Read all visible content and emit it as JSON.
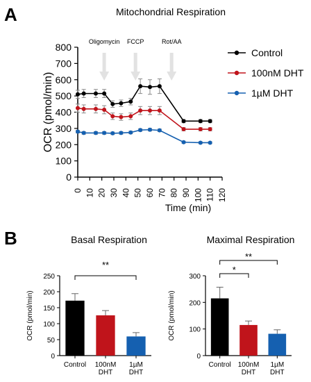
{
  "panels": {
    "a": "A",
    "b": "B"
  },
  "chart_data": [
    {
      "type": "line",
      "title": "Mitochondrial Respiration",
      "xlabel": "Time (min)",
      "ylabel": "OCR (pmol/min)",
      "xlim": [
        0,
        120
      ],
      "ylim": [
        0,
        800
      ],
      "xticks": [
        0,
        10,
        20,
        30,
        40,
        50,
        60,
        70,
        80,
        90,
        100,
        110,
        120
      ],
      "yticks": [
        0,
        100,
        200,
        300,
        400,
        500,
        600,
        700,
        800
      ],
      "x": [
        0,
        5,
        15,
        22,
        29,
        36,
        44,
        52,
        60,
        68,
        80,
        88,
        102,
        110
      ],
      "legend_position": "top-right",
      "annotations": [
        {
          "label": "Oligomycin",
          "x": 22
        },
        {
          "label": "FCCP",
          "x": 48
        },
        {
          "label": "Rot/AA",
          "x": 78
        }
      ],
      "series": [
        {
          "name": "Control",
          "color": "#000000",
          "x": [
            0,
            5,
            15,
            22,
            29,
            36,
            44,
            52,
            60,
            68,
            88,
            102,
            110
          ],
          "y": [
            510,
            515,
            515,
            515,
            450,
            455,
            465,
            560,
            555,
            560,
            345,
            345,
            345
          ],
          "err": [
            25,
            25,
            25,
            25,
            20,
            20,
            20,
            45,
            45,
            45,
            10,
            10,
            10
          ]
        },
        {
          "name": "100nM DHT",
          "color": "#c0141b",
          "x": [
            0,
            5,
            15,
            22,
            29,
            36,
            44,
            52,
            60,
            68,
            88,
            102,
            110
          ],
          "y": [
            425,
            420,
            420,
            415,
            375,
            370,
            375,
            410,
            410,
            410,
            295,
            295,
            295
          ],
          "err": [
            25,
            25,
            25,
            25,
            20,
            20,
            20,
            25,
            25,
            25,
            10,
            10,
            10
          ]
        },
        {
          "name": "1µM DHT",
          "color": "#1560b0",
          "x": [
            0,
            5,
            15,
            22,
            29,
            36,
            44,
            52,
            60,
            68,
            88,
            102,
            110
          ],
          "y": [
            280,
            272,
            272,
            272,
            270,
            272,
            275,
            290,
            292,
            288,
            215,
            212,
            212
          ],
          "err": [
            8,
            8,
            8,
            8,
            8,
            8,
            8,
            8,
            8,
            8,
            6,
            6,
            6
          ]
        }
      ]
    },
    {
      "type": "bar",
      "title": "Basal Respiration",
      "ylabel": "OCR (pmol/min)",
      "ylim": [
        0,
        250
      ],
      "yticks": [
        0,
        50,
        100,
        150,
        200,
        250
      ],
      "categories": [
        "Control",
        "100nM\nDHT",
        "1µM\nDHT"
      ],
      "values": [
        172,
        126,
        60
      ],
      "errors": [
        22,
        15,
        12
      ],
      "colors": [
        "#000000",
        "#c0141b",
        "#1560b0"
      ],
      "significance": [
        {
          "from": 0,
          "to": 2,
          "label": "**"
        }
      ]
    },
    {
      "type": "bar",
      "title": "Maximal Respiration",
      "ylabel": "OCR (pmol/min)",
      "ylim": [
        0,
        300
      ],
      "yticks": [
        0,
        100,
        200,
        300
      ],
      "categories": [
        "Control",
        "100nM\nDHT",
        "1µM\nDHT"
      ],
      "values": [
        215,
        115,
        82
      ],
      "errors": [
        42,
        15,
        15
      ],
      "colors": [
        "#000000",
        "#c0141b",
        "#1560b0"
      ],
      "significance": [
        {
          "from": 0,
          "to": 1,
          "label": "*"
        },
        {
          "from": 0,
          "to": 2,
          "label": "**"
        }
      ]
    }
  ]
}
